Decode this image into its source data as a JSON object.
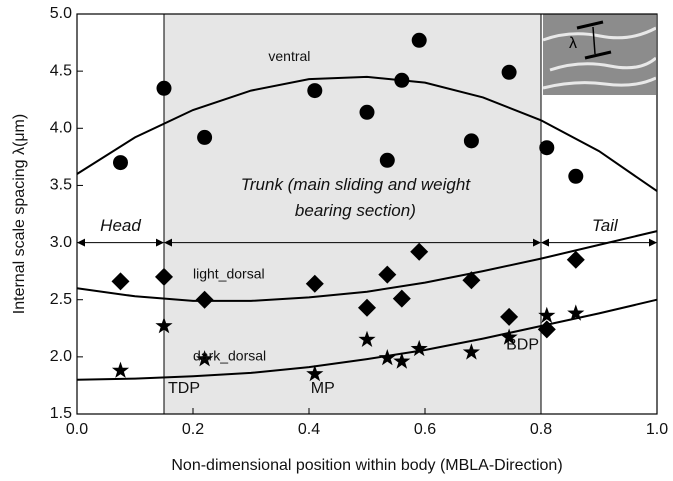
{
  "chart_data": {
    "type": "scatter",
    "xlabel": "Non-dimensional position within body (MBLA-Direction)",
    "ylabel": "Internal scale spacing λ(μm)",
    "xlim": [
      0,
      1
    ],
    "ylim": [
      1.5,
      5.0
    ],
    "xticks": [
      {
        "value": 0,
        "label": "0.0"
      },
      0.2,
      0.4,
      0.6,
      0.8,
      {
        "value": 1,
        "label": "1.0"
      }
    ],
    "yticks": [
      1.5,
      {
        "value": 2,
        "label": "2.0"
      },
      2.5,
      {
        "value": 3,
        "label": "3.0"
      },
      3.5,
      {
        "value": 4,
        "label": "4.0"
      },
      4.5,
      {
        "value": 5,
        "label": "5.0"
      }
    ],
    "region_bounds": [
      0.15,
      0.8
    ],
    "fit_x": [
      0,
      0.1,
      0.2,
      0.3,
      0.4,
      0.5,
      0.6,
      0.7,
      0.8,
      0.9,
      1.0
    ],
    "series": [
      {
        "name": "ventral",
        "marker": "circle",
        "color": "#000000",
        "x": [
          0.075,
          0.15,
          0.22,
          0.41,
          0.5,
          0.535,
          0.56,
          0.59,
          0.68,
          0.745,
          0.81,
          0.86
        ],
        "values": [
          3.7,
          4.35,
          3.92,
          4.33,
          4.14,
          3.72,
          4.42,
          4.77,
          3.89,
          4.49,
          3.83,
          3.58
        ],
        "fit_values": [
          3.6,
          3.92,
          4.16,
          4.33,
          4.43,
          4.45,
          4.4,
          4.27,
          4.07,
          3.8,
          3.45
        ]
      },
      {
        "name": "light_dorsal",
        "marker": "diamond",
        "color": "#000000",
        "x": [
          0.075,
          0.15,
          0.22,
          0.41,
          0.5,
          0.535,
          0.56,
          0.59,
          0.68,
          0.745,
          0.81,
          0.86
        ],
        "values": [
          2.66,
          2.7,
          2.5,
          2.64,
          2.43,
          2.72,
          2.51,
          2.92,
          2.67,
          2.35,
          2.24,
          2.85
        ],
        "fit_values": [
          2.6,
          2.53,
          2.49,
          2.49,
          2.52,
          2.57,
          2.65,
          2.75,
          2.86,
          2.98,
          3.1
        ]
      },
      {
        "name": "dark_dorsal",
        "marker": "star",
        "color": "#000000",
        "x": [
          0.075,
          0.15,
          0.22,
          0.41,
          0.5,
          0.535,
          0.56,
          0.59,
          0.68,
          0.745,
          0.81,
          0.86
        ],
        "values": [
          1.88,
          2.27,
          1.98,
          1.85,
          2.15,
          1.99,
          1.96,
          2.07,
          2.04,
          2.17,
          2.36,
          2.38
        ],
        "fit_values": [
          1.8,
          1.81,
          1.83,
          1.86,
          1.91,
          1.98,
          2.06,
          2.16,
          2.27,
          2.38,
          2.5
        ]
      }
    ],
    "annotations": {
      "head": "Head",
      "trunk": [
        "Trunk (main sliding and weight",
        "bearing section)"
      ],
      "tail": "Tail",
      "tdp": "TDP",
      "mp": "MP",
      "bdp": "BDP",
      "inset_symbol": "λ"
    }
  }
}
